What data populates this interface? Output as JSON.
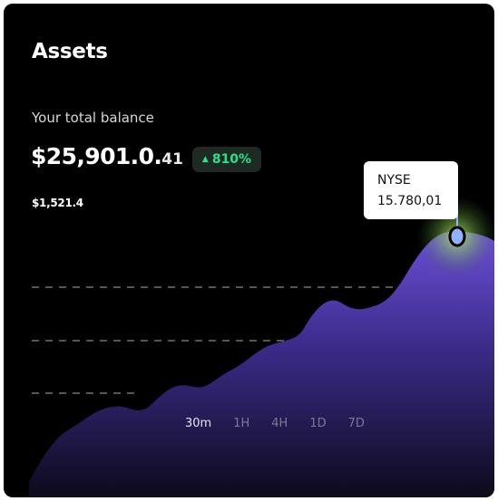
{
  "card": {
    "title": "Assets",
    "balance_label": "Your total balance",
    "balance_main": "$25,901.0.",
    "balance_cents": "41",
    "change_badge": {
      "arrow": "▲",
      "value": "810%",
      "color": "#2ee08a"
    },
    "secondary_value": "$1,521.4"
  },
  "tooltip": {
    "market": "NYSE",
    "value": "15.780,01"
  },
  "timeframes": [
    "30m",
    "1H",
    "4H",
    "1D",
    "7D"
  ],
  "selected_timeframe": "30m",
  "colors": {
    "background": "#000000",
    "area_top": "#6b4fd8",
    "area_bottom": "#0d0a1c",
    "glow": "#8fd95e"
  }
}
